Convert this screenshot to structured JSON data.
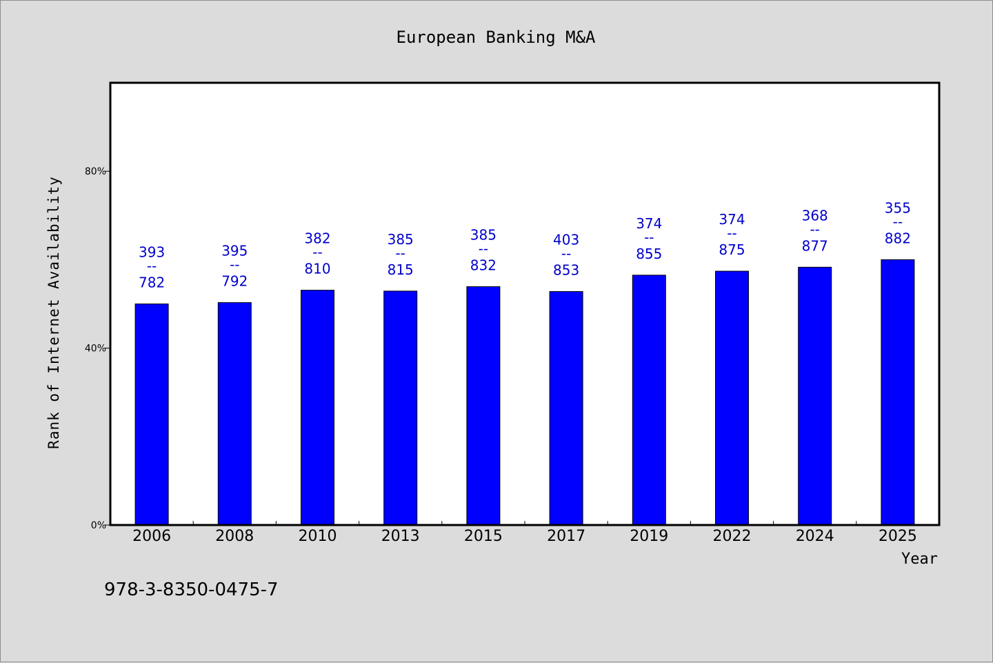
{
  "chart_data": {
    "type": "bar",
    "title": "European Banking M&A",
    "xlabel": "Year",
    "ylabel": "Rank of Internet Availability",
    "categories": [
      "2006",
      "2008",
      "2010",
      "2013",
      "2015",
      "2017",
      "2019",
      "2022",
      "2024",
      "2025"
    ],
    "values": [
      50.0,
      50.3,
      53.1,
      52.9,
      53.9,
      52.8,
      56.5,
      57.4,
      58.3,
      60.0
    ],
    "value_unit": "%",
    "data_labels": [
      {
        "top": "393",
        "sep": "--",
        "bottom": "782"
      },
      {
        "top": "395",
        "sep": "--",
        "bottom": "792"
      },
      {
        "top": "382",
        "sep": "--",
        "bottom": "810"
      },
      {
        "top": "385",
        "sep": "--",
        "bottom": "815"
      },
      {
        "top": "385",
        "sep": "--",
        "bottom": "832"
      },
      {
        "top": "403",
        "sep": "--",
        "bottom": "853"
      },
      {
        "top": "374",
        "sep": "--",
        "bottom": "855"
      },
      {
        "top": "374",
        "sep": "--",
        "bottom": "875"
      },
      {
        "top": "368",
        "sep": "--",
        "bottom": "877"
      },
      {
        "top": "355",
        "sep": "--",
        "bottom": "882"
      }
    ],
    "ylim": [
      0,
      100
    ],
    "yticks": [
      {
        "value": 0,
        "label": "0%"
      },
      {
        "value": 40,
        "label": "40%"
      },
      {
        "value": 80,
        "label": "80%"
      }
    ],
    "grid": false,
    "bar_color": "#0000ff",
    "label_color": "#0000cc"
  },
  "footnote": "978-3-8350-0475-7"
}
